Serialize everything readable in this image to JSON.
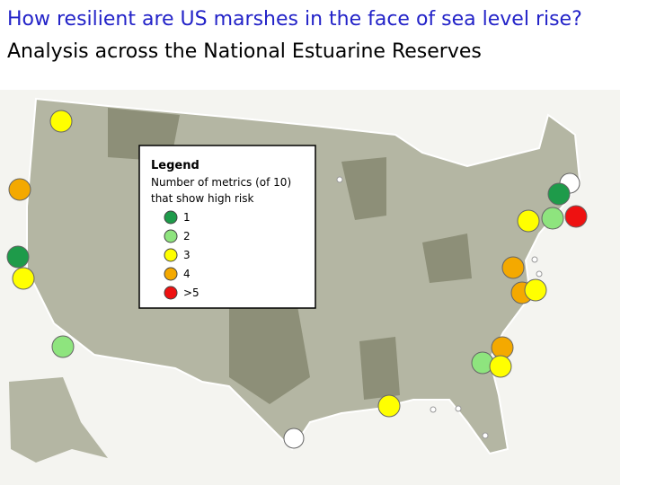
{
  "header": {
    "title": "How resilient are US marshes in the face of sea level rise?",
    "subtitle": "Analysis across the National Estuarine Reserves"
  },
  "legend": {
    "title": "Legend",
    "description": [
      "Number of metrics (of 10)",
      "that show high risk"
    ],
    "items": [
      {
        "label": "1",
        "color": "#1e9b4a"
      },
      {
        "label": "2",
        "color": "#8ee47e"
      },
      {
        "label": "3",
        "color": "#ffff00"
      },
      {
        "label": "4",
        "color": "#f4a900"
      },
      {
        "label": ">5",
        "color": "#ee1111"
      }
    ]
  }
}
